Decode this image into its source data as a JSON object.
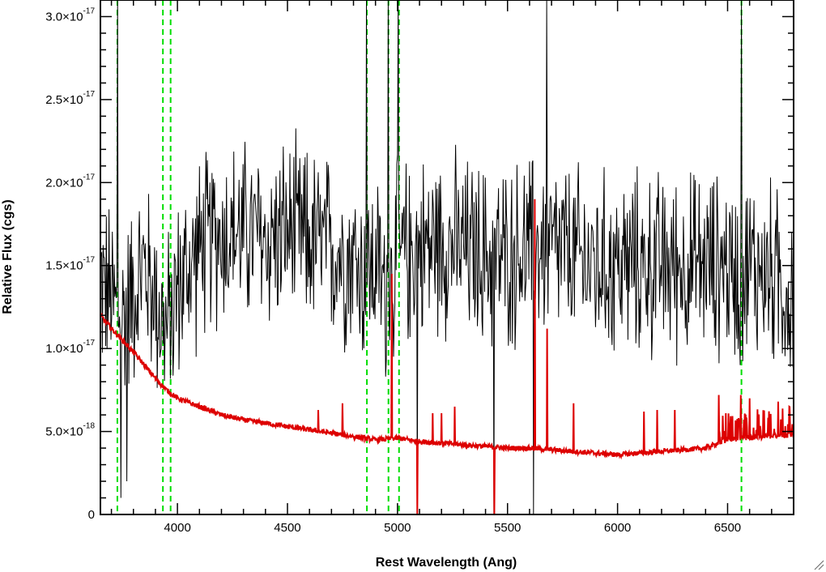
{
  "chart_data": {
    "type": "line",
    "title": "",
    "xlabel": "Rest Wavelength (Ang)",
    "ylabel": "Relative Flux (cgs)",
    "xlim": [
      3650,
      6800
    ],
    "ylim": [
      0,
      3.1e-17
    ],
    "x_ticks": [
      4000,
      4500,
      5000,
      5500,
      6000,
      6500
    ],
    "x_minor_step": 100,
    "y_ticks": [
      {
        "value": 0,
        "label": "0"
      },
      {
        "value": 5e-18,
        "mant": "5.0",
        "exp": "-18"
      },
      {
        "value": 1e-17,
        "mant": "1.0",
        "exp": "-17"
      },
      {
        "value": 1.5e-17,
        "mant": "1.5",
        "exp": "-17"
      },
      {
        "value": 2e-17,
        "mant": "2.0",
        "exp": "-17"
      },
      {
        "value": 2.5e-17,
        "mant": "2.5",
        "exp": "-17"
      },
      {
        "value": 3e-17,
        "mant": "3.0",
        "exp": "-17"
      }
    ],
    "y_minor_step": 1e-18,
    "grid": false,
    "legend": "none",
    "series": [
      {
        "color": "#000000",
        "style": "noisy-spectrum",
        "x": [
          3650,
          3700,
          3725,
          3750,
          3800,
          3850,
          3900,
          3950,
          4000,
          4100,
          4200,
          4300,
          4400,
          4500,
          4600,
          4700,
          4800,
          4850,
          4900,
          4950,
          5000,
          5100,
          5200,
          5300,
          5400,
          5500,
          5600,
          5700,
          5800,
          5900,
          6000,
          6100,
          6200,
          6300,
          6400,
          6500,
          6560,
          6600,
          6700,
          6800
        ],
        "y": [
          1.4e-17,
          1.3e-17,
          1.25e-17,
          1.2e-17,
          1.35e-17,
          1.5e-17,
          1.3e-17,
          1.1e-17,
          1.35e-17,
          1.6e-17,
          1.7e-17,
          1.7e-17,
          1.65e-17,
          1.7e-17,
          1.65e-17,
          1.6e-17,
          1.55e-17,
          1.45e-17,
          1.5e-17,
          1.35e-17,
          1.55e-17,
          1.6e-17,
          1.65e-17,
          1.6e-17,
          1.55e-17,
          1.55e-17,
          1.6e-17,
          1.6e-17,
          1.55e-17,
          1.5e-17,
          1.5e-17,
          1.5e-17,
          1.5e-17,
          1.5e-17,
          1.5e-17,
          1.5e-17,
          1.4e-17,
          1.5e-17,
          1.45e-17,
          1.3e-17
        ],
        "noise_amplitude": 4.5e-18,
        "spikes": [
          {
            "x": 3730,
            "y": 3.1e-17
          },
          {
            "x": 3745,
            "y": 1e-18
          },
          {
            "x": 3770,
            "y": 2e-18
          },
          {
            "x": 4860,
            "y": 3.1e-17
          },
          {
            "x": 4960,
            "y": 3.1e-17
          },
          {
            "x": 5005,
            "y": 3.1e-17
          },
          {
            "x": 5090,
            "y": 0
          },
          {
            "x": 5440,
            "y": 0
          },
          {
            "x": 5620,
            "y": 0
          },
          {
            "x": 5680,
            "y": 3.1e-17
          },
          {
            "x": 6565,
            "y": 3.1e-17
          }
        ]
      },
      {
        "color": "#dd0000",
        "style": "model",
        "x": [
          3650,
          3700,
          3750,
          3800,
          3850,
          3900,
          3950,
          4000,
          4100,
          4200,
          4300,
          4400,
          4500,
          4600,
          4700,
          4800,
          4900,
          5000,
          5100,
          5200,
          5300,
          5400,
          5500,
          5600,
          5700,
          5800,
          5900,
          6000,
          6100,
          6200,
          6300,
          6400,
          6500,
          6600,
          6700,
          6800
        ],
        "y": [
          1.2e-17,
          1.12e-17,
          1.05e-17,
          9.8e-18,
          9e-18,
          8.2e-18,
          7.5e-18,
          7e-18,
          6.5e-18,
          6e-18,
          5.7e-18,
          5.5e-18,
          5.3e-18,
          5.1e-18,
          4.9e-18,
          4.7e-18,
          4.5e-18,
          4.6e-18,
          4.4e-18,
          4.3e-18,
          4.2e-18,
          4.1e-18,
          4e-18,
          4e-18,
          3.9e-18,
          3.8e-18,
          3.7e-18,
          3.6e-18,
          3.7e-18,
          3.8e-18,
          3.9e-18,
          4e-18,
          4.5e-18,
          4.6e-18,
          4.7e-18,
          4.8e-18
        ],
        "spikes": [
          {
            "x": 4640,
            "y": 6.3e-18
          },
          {
            "x": 4750,
            "y": 6.7e-18
          },
          {
            "x": 4975,
            "y": 1.45e-17
          },
          {
            "x": 5090,
            "y": 0
          },
          {
            "x": 5160,
            "y": 6.1e-18
          },
          {
            "x": 5200,
            "y": 6.1e-18
          },
          {
            "x": 5260,
            "y": 6.5e-18
          },
          {
            "x": 5440,
            "y": 0
          },
          {
            "x": 5625,
            "y": 1.9e-17
          },
          {
            "x": 5680,
            "y": 1.12e-17
          },
          {
            "x": 5800,
            "y": 6.7e-18
          },
          {
            "x": 6120,
            "y": 6.2e-18
          },
          {
            "x": 6180,
            "y": 6.3e-18
          },
          {
            "x": 6260,
            "y": 6.3e-18
          },
          {
            "x": 6460,
            "y": 7.2e-18
          },
          {
            "x": 6560,
            "y": 7.2e-18
          },
          {
            "x": 6600,
            "y": 7e-18
          },
          {
            "x": 6730,
            "y": 6.8e-18
          },
          {
            "x": 6780,
            "y": 6.5e-18
          }
        ]
      }
    ],
    "vertical_markers": {
      "color": "#00dd00",
      "style": "dashed",
      "x": [
        3727,
        3934,
        3969,
        4861,
        4959,
        5007,
        6563
      ]
    }
  },
  "window": {
    "resize_grip_icon": "resize-grip-icon"
  }
}
